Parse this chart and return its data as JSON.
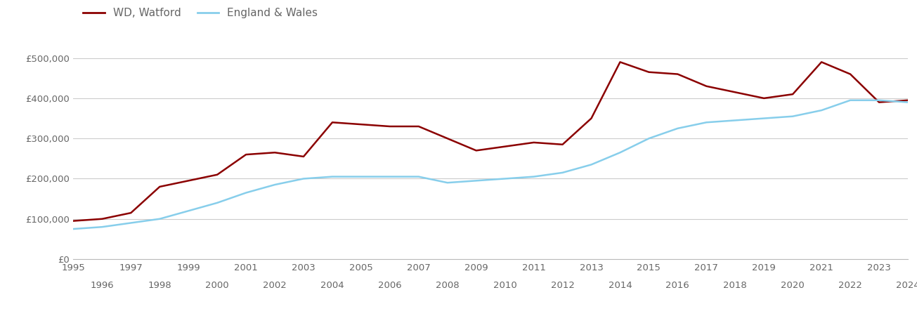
{
  "watford_years": [
    1995,
    1996,
    1997,
    1998,
    1999,
    2000,
    2001,
    2002,
    2003,
    2004,
    2005,
    2006,
    2007,
    2008,
    2009,
    2010,
    2011,
    2012,
    2013,
    2014,
    2015,
    2016,
    2017,
    2018,
    2019,
    2020,
    2021,
    2022,
    2023,
    2024
  ],
  "watford_values": [
    95000,
    100000,
    115000,
    180000,
    195000,
    210000,
    260000,
    265000,
    255000,
    340000,
    335000,
    330000,
    330000,
    300000,
    270000,
    280000,
    290000,
    285000,
    350000,
    490000,
    465000,
    460000,
    430000,
    415000,
    400000,
    410000,
    490000,
    460000,
    390000,
    395000
  ],
  "england_years": [
    1995,
    1996,
    1997,
    1998,
    1999,
    2000,
    2001,
    2002,
    2003,
    2004,
    2005,
    2006,
    2007,
    2008,
    2009,
    2010,
    2011,
    2012,
    2013,
    2014,
    2015,
    2016,
    2017,
    2018,
    2019,
    2020,
    2021,
    2022,
    2023,
    2024
  ],
  "england_values": [
    75000,
    80000,
    90000,
    100000,
    120000,
    140000,
    165000,
    185000,
    200000,
    205000,
    205000,
    205000,
    205000,
    190000,
    195000,
    200000,
    205000,
    215000,
    235000,
    265000,
    300000,
    325000,
    340000,
    345000,
    350000,
    355000,
    370000,
    395000,
    395000,
    390000
  ],
  "watford_color": "#8B0000",
  "england_color": "#87CEEB",
  "watford_label": "WD, Watford",
  "england_label": "England & Wales",
  "ylim": [
    0,
    550000
  ],
  "yticks": [
    0,
    100000,
    200000,
    300000,
    400000,
    500000
  ],
  "ytick_labels": [
    "£0",
    "£100,000",
    "£200,000",
    "£300,000",
    "£400,000",
    "£500,000"
  ],
  "background_color": "#ffffff",
  "grid_color": "#cccccc",
  "line_width": 1.8,
  "legend_fontsize": 11,
  "tick_fontsize": 9.5,
  "tick_color": "#666666",
  "odd_years": [
    1995,
    1997,
    1999,
    2001,
    2003,
    2005,
    2007,
    2009,
    2011,
    2013,
    2015,
    2017,
    2019,
    2021,
    2023
  ],
  "even_years": [
    1996,
    1998,
    2000,
    2002,
    2004,
    2006,
    2008,
    2010,
    2012,
    2014,
    2016,
    2018,
    2020,
    2022,
    2024
  ]
}
